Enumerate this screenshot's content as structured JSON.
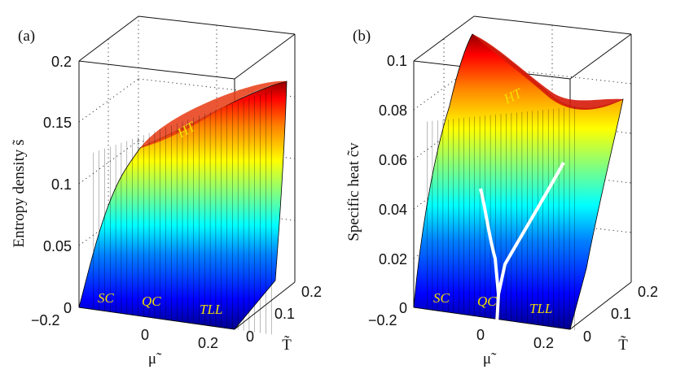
{
  "chart_data": [
    {
      "type": "surface",
      "panel_label": "(a)",
      "zlabel": "Entropy density s̃",
      "xlabel": "μ̃",
      "ylabel": "T̃",
      "xlim": [
        -0.2,
        0.2
      ],
      "ylim": [
        0,
        0.2
      ],
      "zlim": [
        0,
        0.2
      ],
      "z_ticks": [
        "0",
        "0.05",
        "0.1",
        "0.15",
        "0.2"
      ],
      "x_ticks": [
        "−0.2",
        "0",
        "0.2"
      ],
      "y_ticks": [
        "0",
        "0.1",
        "0.2"
      ],
      "region_labels": [
        "SC",
        "QC",
        "TLL",
        "HT"
      ],
      "colormap": "jet",
      "surface_value_range": [
        0,
        0.18
      ]
    },
    {
      "type": "surface",
      "panel_label": "(b)",
      "zlabel": "Specific heat c̃v",
      "xlabel": "μ̃",
      "ylabel": "T̃",
      "xlim": [
        -0.2,
        0.2
      ],
      "ylim": [
        0,
        0.2
      ],
      "zlim": [
        0,
        0.1
      ],
      "z_ticks": [
        "0",
        "0.02",
        "0.04",
        "0.06",
        "0.08",
        "0.1"
      ],
      "x_ticks": [
        "−0.2",
        "0",
        "0.2"
      ],
      "y_ticks": [
        "0",
        "0.1",
        "0.2"
      ],
      "region_labels": [
        "SC",
        "QC",
        "TLL",
        "HT"
      ],
      "colormap": "jet",
      "surface_value_range": [
        0,
        0.1
      ],
      "overlay": "white crossover lines (V shape) emanating from critical point at μ̃ = 0"
    }
  ]
}
